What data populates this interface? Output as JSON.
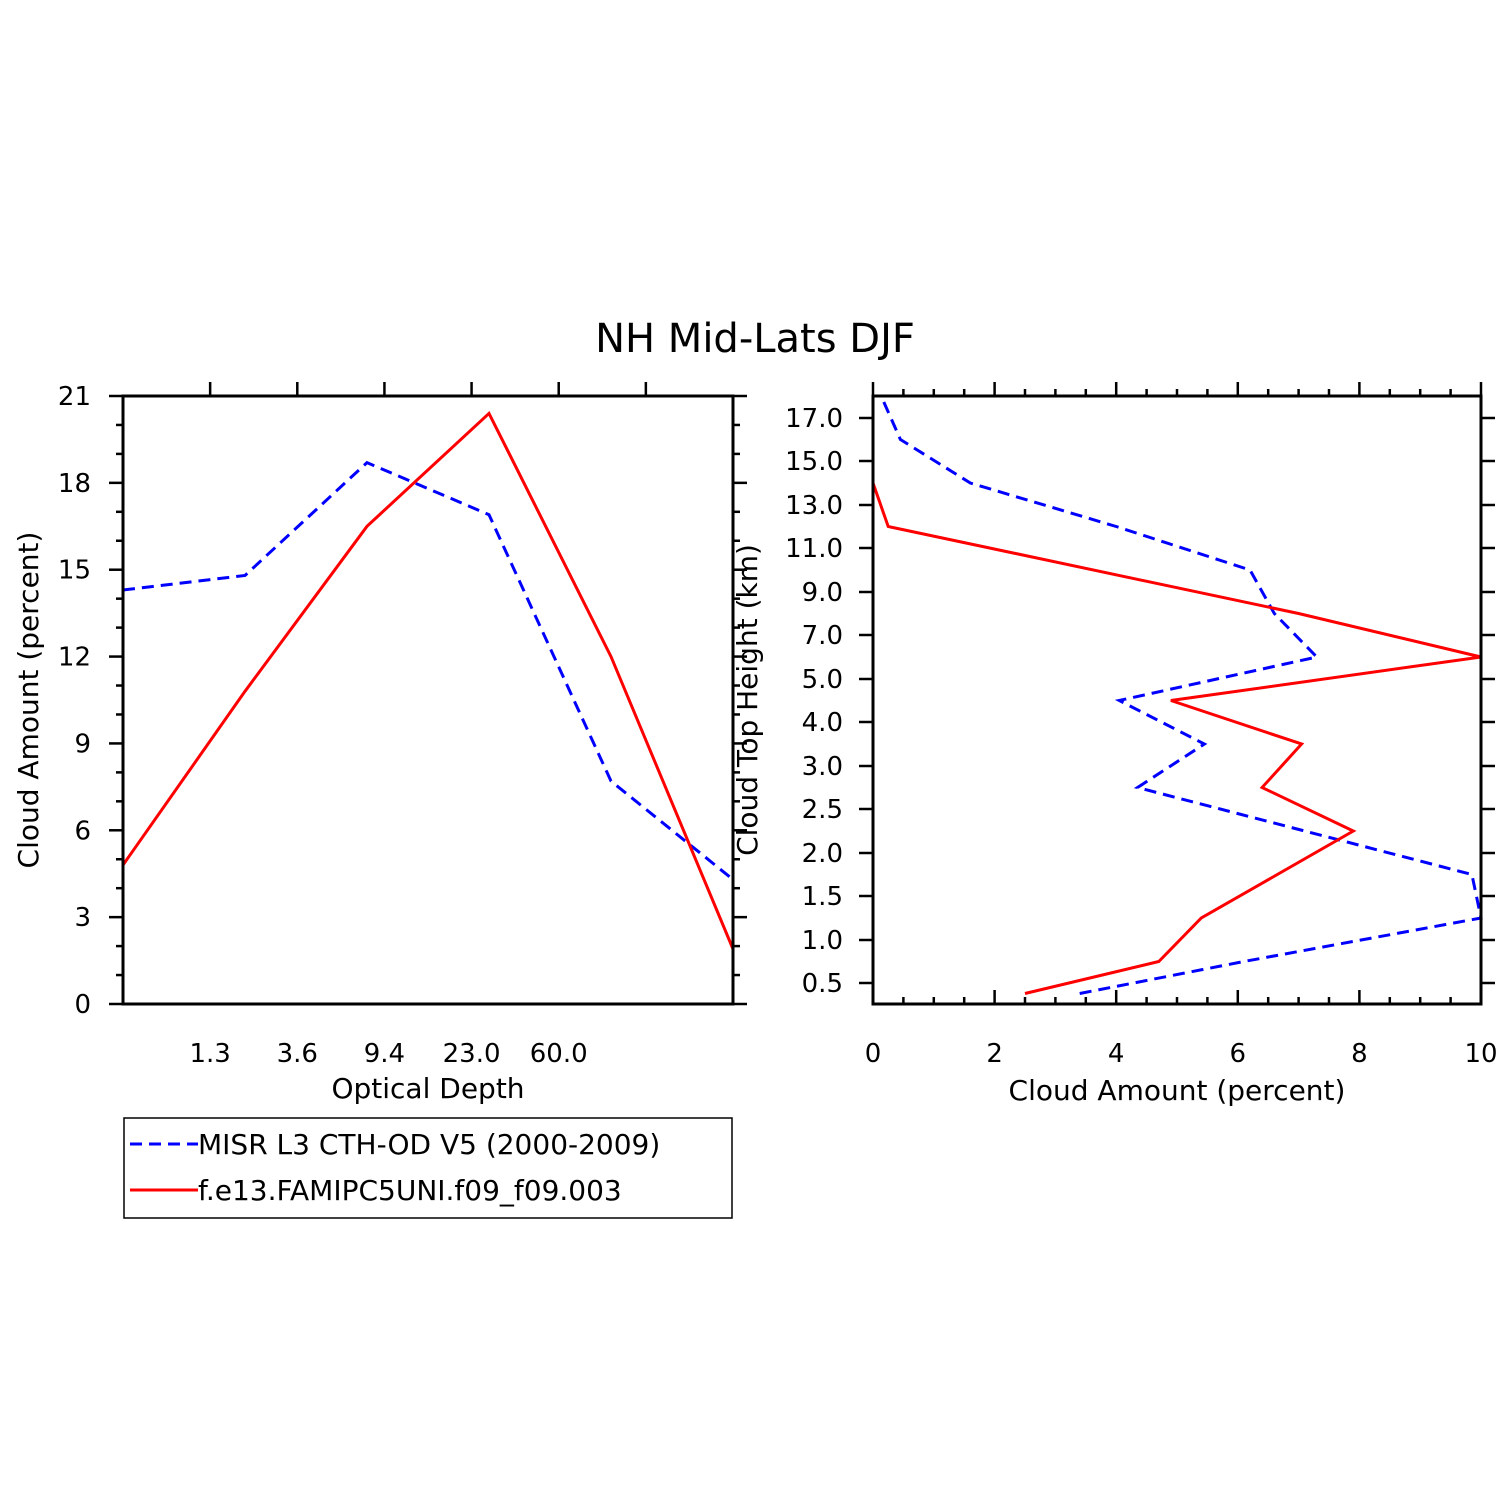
{
  "figure": {
    "title": "NH Mid-Lats DJF"
  },
  "legend": {
    "entries": [
      {
        "label": "MISR L3 CTH-OD V5 (2000-2009)",
        "color": "#0000ff",
        "dash": "dashed"
      },
      {
        "label": "f.e13.FAMIPC5UNI.f09_f09.003",
        "color": "#ff0000",
        "dash": "solid"
      }
    ]
  },
  "chart_data": [
    {
      "type": "line",
      "xlabel": "Optical Depth",
      "ylabel": "Cloud Amount (percent)",
      "x_tick_labels": [
        "1.3",
        "3.6",
        "9.4",
        "23.0",
        "60.0"
      ],
      "y_ticks": [
        0,
        3,
        6,
        9,
        12,
        15,
        18,
        21
      ],
      "ylim": [
        0,
        21
      ],
      "x_bins": 7,
      "series": [
        {
          "name": "MISR L3 CTH-OD V5 (2000-2009)",
          "color": "#0000ff",
          "dash": "dashed",
          "values": [
            14.3,
            14.8,
            18.7,
            16.9,
            7.7,
            4.3
          ]
        },
        {
          "name": "f.e13.FAMIPC5UNI.f09_f09.003",
          "color": "#ff0000",
          "dash": "solid",
          "values": [
            4.8,
            10.8,
            16.5,
            20.4,
            12.0,
            1.9
          ]
        }
      ]
    },
    {
      "type": "line",
      "xlabel": "Cloud Amount (percent)",
      "ylabel": "Cloud Top Height (km)",
      "x_ticks": [
        0,
        2,
        4,
        6,
        8,
        10
      ],
      "xlim": [
        0,
        10
      ],
      "y_tick_labels": [
        "0.5",
        "1.0",
        "1.5",
        "2.0",
        "2.5",
        "3.0",
        "4.0",
        "5.0",
        "7.0",
        "9.0",
        "11.0",
        "13.0",
        "15.0",
        "17.0"
      ],
      "series": [
        {
          "name": "MISR L3 CTH-OD V5 (2000-2009)",
          "color": "#0000ff",
          "dash": "dashed",
          "points": [
            [
              3.4,
              0.25
            ],
            [
              6.1,
              0.75
            ],
            [
              10.0,
              1.25
            ],
            [
              9.85,
              1.75
            ],
            [
              4.35,
              2.75
            ],
            [
              5.45,
              3.5
            ],
            [
              4.05,
              4.5
            ],
            [
              7.3,
              6.0
            ],
            [
              6.6,
              8.0
            ],
            [
              6.2,
              10.0
            ],
            [
              4.0,
              12.0
            ],
            [
              1.6,
              14.0
            ],
            [
              0.45,
              16.0
            ],
            [
              0.15,
              17.9
            ]
          ]
        },
        {
          "name": "f.e13.FAMIPC5UNI.f09_f09.003",
          "color": "#ff0000",
          "dash": "solid",
          "points": [
            [
              2.5,
              0.25
            ],
            [
              4.7,
              0.75
            ],
            [
              5.4,
              1.25
            ],
            [
              7.9,
              2.25
            ],
            [
              6.4,
              2.75
            ],
            [
              7.05,
              3.5
            ],
            [
              4.9,
              4.5
            ],
            [
              10.0,
              6.0
            ],
            [
              7.0,
              8.0
            ],
            [
              0.25,
              12.0
            ],
            [
              0.0,
              14.0
            ]
          ]
        }
      ]
    }
  ]
}
